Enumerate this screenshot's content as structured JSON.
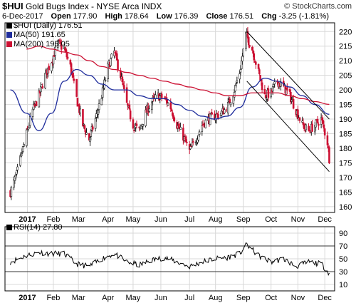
{
  "header": {
    "symbol": "$HUI",
    "title": "Gold Bugs Index - NYSE Arca INDX",
    "date": "6-Dec-2017",
    "open_label": "Open",
    "open": "177.90",
    "high_label": "High",
    "high": "178.64",
    "low_label": "Low",
    "low": "176.39",
    "close_label": "Close",
    "close": "176.51",
    "chg_label": "Chg",
    "chg": "-3.25 (-1.81%)",
    "credit": "© StockCharts.com"
  },
  "legend": {
    "price": "$HUI (Daily) 176.51",
    "ma50": "MA(50) 191.65",
    "ma200": "MA(200) 195.05",
    "rsi": "RSI(14) 27.80"
  },
  "colors": {
    "candle": "#000000",
    "ma50": "#1f2d9c",
    "ma200": "#cc1133",
    "rsi": "#000000",
    "channel": "#000000",
    "grid": "#d8d8d8",
    "panel_border": "#000000"
  },
  "chart_data": [
    {
      "type": "line",
      "title": "$HUI (Daily) 176.51",
      "x_ticks": [
        "2017",
        "Feb",
        "Mar",
        "Apr",
        "May",
        "Jun",
        "Jul",
        "Aug",
        "Sep",
        "Oct",
        "Nov",
        "Dec"
      ],
      "y_ticks": [
        160,
        165,
        170,
        175,
        180,
        185,
        190,
        195,
        200,
        205,
        210,
        215,
        220
      ],
      "ylim": [
        158,
        223
      ],
      "grid": true,
      "legend_position": "top-left",
      "series": [
        {
          "name": "$HUI (Daily)",
          "x": [
            "2016-12-15",
            "2016-12-22",
            "2017-01-02",
            "2017-01-09",
            "2017-01-16",
            "2017-01-23",
            "2017-01-30",
            "2017-02-06",
            "2017-02-13",
            "2017-02-20",
            "2017-02-27",
            "2017-03-06",
            "2017-03-13",
            "2017-03-20",
            "2017-03-27",
            "2017-04-03",
            "2017-04-10",
            "2017-04-17",
            "2017-04-24",
            "2017-05-01",
            "2017-05-08",
            "2017-05-15",
            "2017-05-22",
            "2017-05-29",
            "2017-06-05",
            "2017-06-12",
            "2017-06-19",
            "2017-06-26",
            "2017-07-03",
            "2017-07-10",
            "2017-07-17",
            "2017-07-24",
            "2017-07-31",
            "2017-08-07",
            "2017-08-14",
            "2017-08-21",
            "2017-08-28",
            "2017-09-04",
            "2017-09-11",
            "2017-09-18",
            "2017-09-25",
            "2017-10-02",
            "2017-10-09",
            "2017-10-16",
            "2017-10-23",
            "2017-10-30",
            "2017-11-06",
            "2017-11-13",
            "2017-11-20",
            "2017-11-27",
            "2017-12-04",
            "2017-12-06"
          ],
          "values": [
            165,
            171,
            185,
            193,
            198,
            205,
            210,
            216,
            214,
            208,
            197,
            188,
            183,
            190,
            198,
            208,
            213,
            205,
            195,
            188,
            186,
            192,
            196,
            198,
            197,
            194,
            188,
            184,
            179,
            183,
            188,
            190,
            191,
            192,
            194,
            199,
            206,
            219,
            214,
            206,
            198,
            199,
            203,
            201,
            198,
            193,
            188,
            186,
            188,
            190,
            182,
            176.51
          ]
        },
        {
          "name": "MA(50)",
          "x": [
            "2016-12-15",
            "2017-01-02",
            "2017-01-16",
            "2017-01-30",
            "2017-02-13",
            "2017-02-27",
            "2017-03-13",
            "2017-03-27",
            "2017-04-10",
            "2017-04-24",
            "2017-05-08",
            "2017-05-22",
            "2017-06-05",
            "2017-06-19",
            "2017-07-03",
            "2017-07-17",
            "2017-07-31",
            "2017-08-14",
            "2017-08-28",
            "2017-09-11",
            "2017-09-25",
            "2017-10-09",
            "2017-10-23",
            "2017-11-06",
            "2017-11-20",
            "2017-12-06"
          ],
          "values": [
            200,
            192,
            186,
            192,
            203,
            207,
            205,
            202,
            200,
            200,
            198,
            197,
            197,
            195,
            193,
            191,
            190,
            191,
            194,
            201,
            204,
            203,
            201,
            198,
            195,
            191.65
          ]
        },
        {
          "name": "MA(200)",
          "x": [
            "2017-01-02",
            "2017-01-16",
            "2017-01-30",
            "2017-02-13",
            "2017-02-27",
            "2017-03-13",
            "2017-03-27",
            "2017-04-10",
            "2017-04-24",
            "2017-05-08",
            "2017-05-22",
            "2017-06-05",
            "2017-06-19",
            "2017-07-03",
            "2017-07-17",
            "2017-07-31",
            "2017-08-14",
            "2017-08-28",
            "2017-09-11",
            "2017-09-25",
            "2017-10-09",
            "2017-10-23",
            "2017-11-06",
            "2017-11-20",
            "2017-12-06"
          ],
          "values": [
            214,
            215,
            214,
            213,
            212,
            210,
            208,
            207,
            206,
            205,
            204,
            203,
            202,
            201,
            200,
            199,
            198,
            198,
            199,
            199,
            199,
            198,
            197,
            196,
            195.05
          ]
        }
      ],
      "annotations": [
        {
          "kind": "trend-channel-upper",
          "x": [
            "2017-09-05",
            "2017-12-06"
          ],
          "values": [
            220,
            190
          ]
        },
        {
          "kind": "trend-channel-lower",
          "x": [
            "2017-09-05",
            "2017-12-06"
          ],
          "values": [
            203,
            172
          ]
        }
      ]
    },
    {
      "type": "line",
      "title": "RSI(14) 27.80",
      "y_ticks": [
        10,
        30,
        50,
        70,
        90
      ],
      "ylim": [
        0,
        100
      ],
      "reference_lines": [
        30,
        70
      ],
      "series": [
        {
          "name": "RSI(14)",
          "x": [
            "2016-12-15",
            "2017-01-02",
            "2017-01-16",
            "2017-01-30",
            "2017-02-13",
            "2017-02-27",
            "2017-03-13",
            "2017-03-27",
            "2017-04-10",
            "2017-04-24",
            "2017-05-08",
            "2017-05-22",
            "2017-06-05",
            "2017-06-19",
            "2017-07-03",
            "2017-07-17",
            "2017-07-31",
            "2017-08-14",
            "2017-08-28",
            "2017-09-05",
            "2017-09-18",
            "2017-10-02",
            "2017-10-16",
            "2017-10-30",
            "2017-11-13",
            "2017-11-27",
            "2017-12-06"
          ],
          "values": [
            45,
            55,
            60,
            58,
            58,
            42,
            38,
            50,
            58,
            45,
            40,
            48,
            52,
            45,
            38,
            45,
            50,
            52,
            58,
            72,
            55,
            45,
            50,
            38,
            45,
            42,
            27.8
          ]
        }
      ]
    }
  ]
}
